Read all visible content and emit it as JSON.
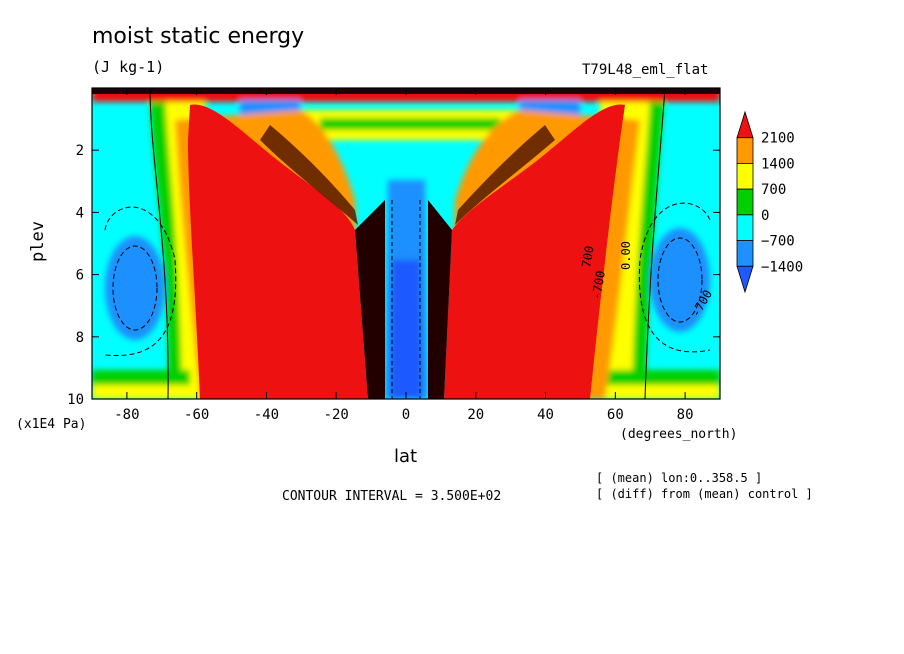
{
  "title": "moist static energy",
  "units": "(J kg-1)",
  "experiment": "T79L48_eml_flat",
  "ylabel": "plev",
  "yunit": "(x1E4 Pa)",
  "xlabel": "lat",
  "xunit": "(degrees_north)",
  "contour_interval": "CONTOUR INTERVAL = 3.500E+02",
  "footnotes": [
    "[ (mean) lon:0..358.5 ]",
    "[ (diff) from (mean) control ]"
  ],
  "contour_labels": [
    "-700",
    "700",
    "0.00",
    "-700"
  ],
  "chart_data": {
    "type": "heatmap",
    "title": "moist static energy",
    "units": "(J kg-1)",
    "xlabel": "lat",
    "ylabel": "plev",
    "x_ticks": [
      -80,
      -60,
      -40,
      -20,
      0,
      20,
      40,
      60,
      80
    ],
    "y_ticks": [
      2,
      4,
      6,
      8,
      10
    ],
    "xlim": [
      -90,
      90
    ],
    "ylim": [
      10,
      0
    ],
    "colorbar": {
      "levels": [
        2100,
        1400,
        700,
        0,
        -700,
        -1400
      ],
      "colors": [
        "#ee1111",
        "#ff9900",
        "#ffff00",
        "#00d000",
        "#00ffff",
        "#1e90ff",
        "#1e5aff"
      ]
    },
    "regions": [
      {
        "name": "southern subtropical max",
        "lat_center": -38,
        "plev_range": [
          1,
          10
        ],
        "value": ">2100"
      },
      {
        "name": "northern subtropical max",
        "lat_center": 45,
        "plev_range": [
          1,
          10
        ],
        "value": ">2100"
      },
      {
        "name": "equatorial min",
        "lat_center": 0,
        "plev_range": [
          3,
          10
        ],
        "value": "-1400"
      },
      {
        "name": "southern polar min",
        "lat_center": -82,
        "plev": 6.5,
        "value": "-1400"
      },
      {
        "name": "northern polar min",
        "lat_center": 80,
        "plev": 6.3,
        "value": "-1400"
      }
    ]
  }
}
